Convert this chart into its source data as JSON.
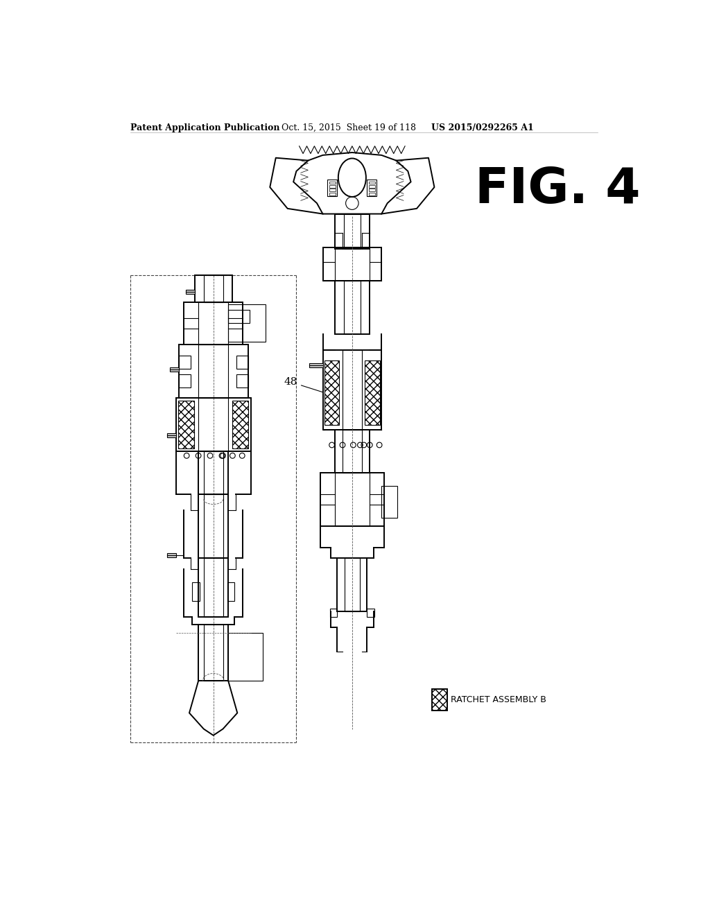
{
  "title_left": "Patent Application Publication",
  "title_mid": "Oct. 15, 2015  Sheet 19 of 118",
  "title_right": "US 2015/0292265 A1",
  "fig_label": "FIG. 4",
  "label_48": "48",
  "legend_label": "RATCHET ASSEMBLY B",
  "bg_color": "#ffffff",
  "line_color": "#000000",
  "header_fontsize": 9,
  "fig_fontsize": 48
}
